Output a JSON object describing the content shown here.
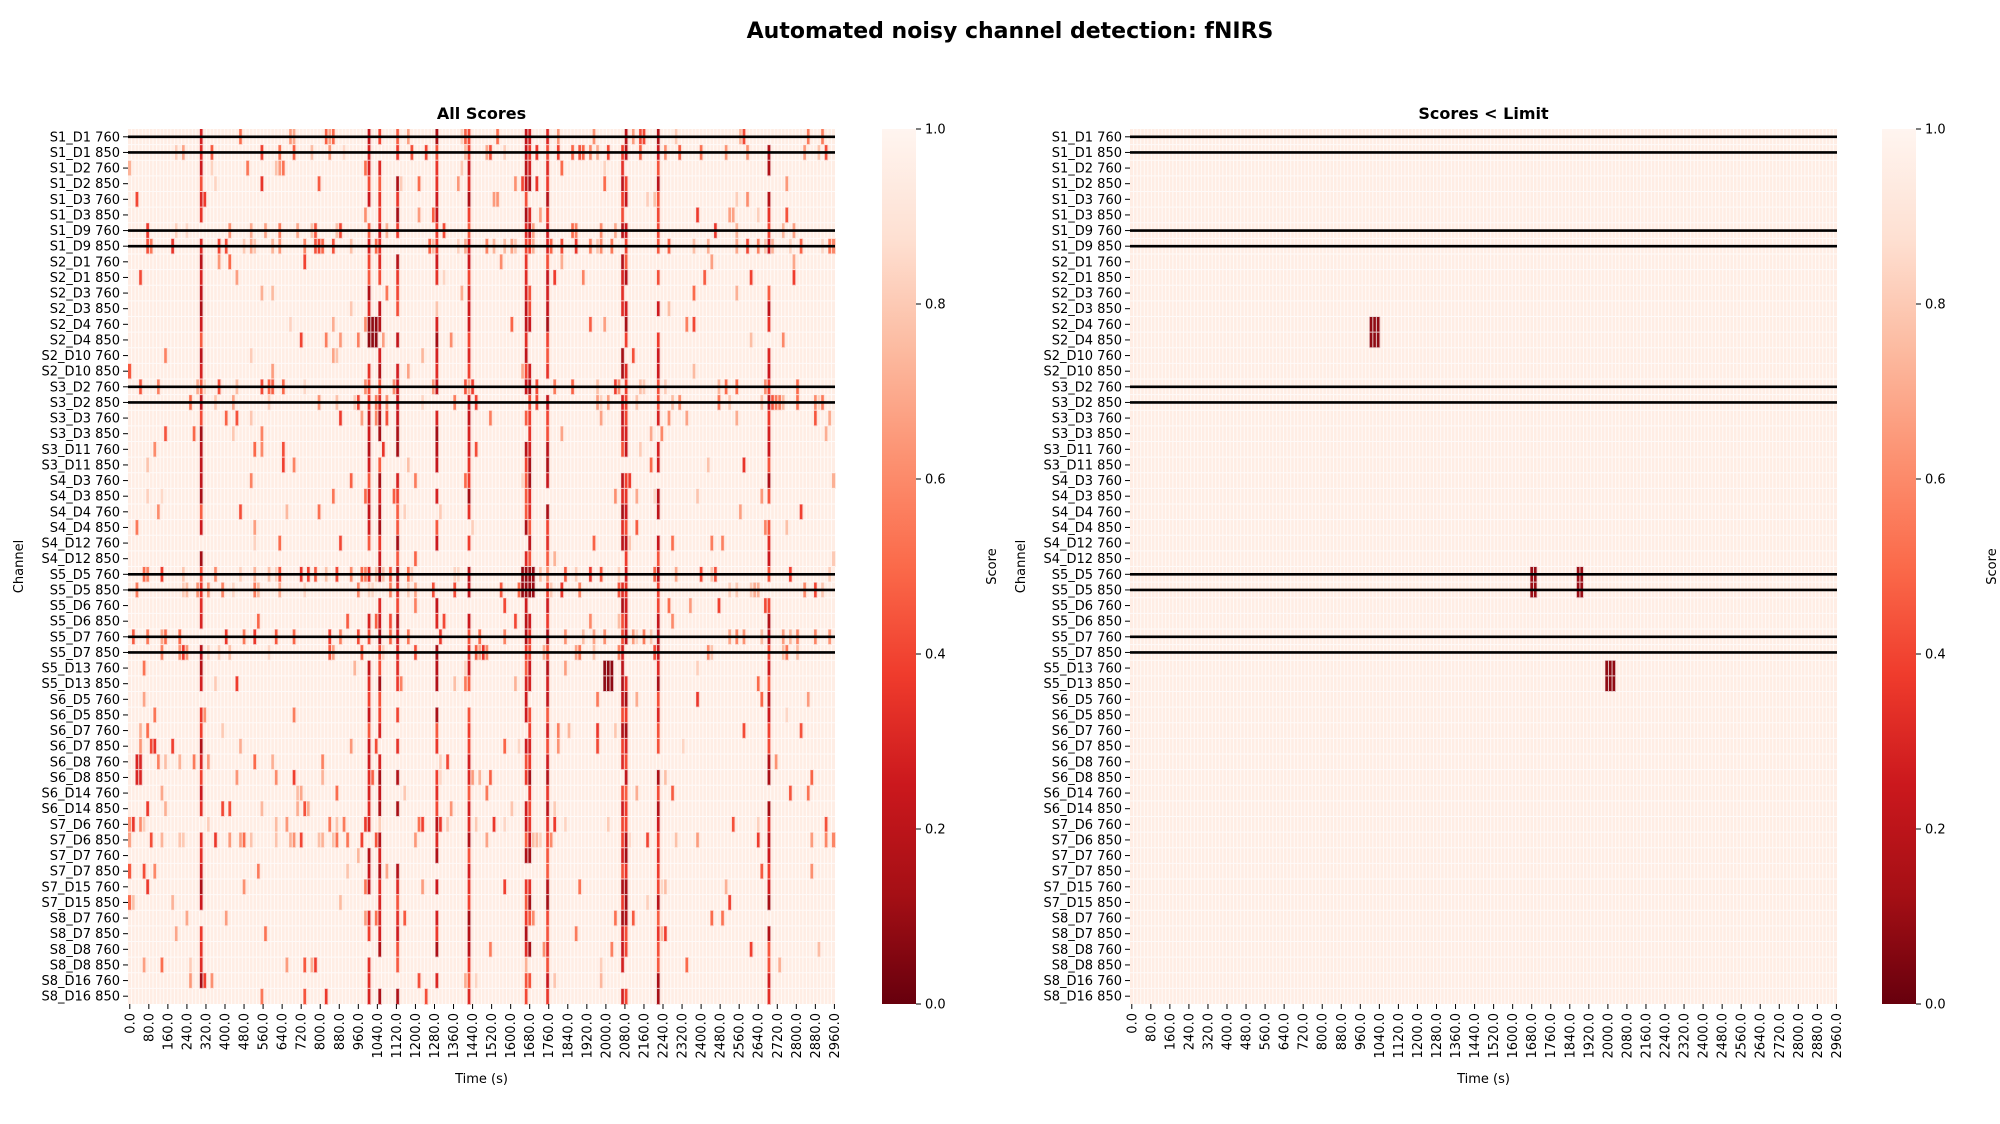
{
  "figure": {
    "title": "Automated noisy channel detection: fNIRS"
  },
  "chart_data": [
    {
      "type": "heatmap",
      "title": "All Scores",
      "xlabel": "Time (s)",
      "ylabel": "Channel",
      "colorbar_label": "Score",
      "colormap": "Reds_r",
      "vlim": [
        0.0,
        1.0
      ],
      "colorbar_ticks": [
        "0.0",
        "0.2",
        "0.4",
        "0.6",
        "0.8",
        "1.0"
      ],
      "x_ticks": [
        "0.0",
        "80.0",
        "160.0",
        "240.0",
        "320.0",
        "400.0",
        "480.0",
        "560.0",
        "640.0",
        "720.0",
        "800.0",
        "880.0",
        "960.0",
        "1040.0",
        "1120.0",
        "1200.0",
        "1280.0",
        "1360.0",
        "1440.0",
        "1520.0",
        "1600.0",
        "1680.0",
        "1760.0",
        "1840.0",
        "1920.0",
        "2000.0",
        "2080.0",
        "2160.0",
        "2240.0",
        "2320.0",
        "2400.0",
        "2480.0",
        "2560.0",
        "2640.0",
        "2720.0",
        "2800.0",
        "2880.0",
        "2960.0"
      ],
      "x_range": [
        0,
        2970
      ],
      "channels": [
        "S1_D1 760",
        "S1_D1 850",
        "S1_D2 760",
        "S1_D2 850",
        "S1_D3 760",
        "S1_D3 850",
        "S1_D9 760",
        "S1_D9 850",
        "S2_D1 760",
        "S2_D1 850",
        "S2_D3 760",
        "S2_D3 850",
        "S2_D4 760",
        "S2_D4 850",
        "S2_D10 760",
        "S2_D10 850",
        "S3_D2 760",
        "S3_D2 850",
        "S3_D3 760",
        "S3_D3 850",
        "S3_D11 760",
        "S3_D11 850",
        "S4_D3 760",
        "S4_D3 850",
        "S4_D4 760",
        "S4_D4 850",
        "S4_D12 760",
        "S4_D12 850",
        "S5_D5 760",
        "S5_D5 850",
        "S5_D6 760",
        "S5_D6 850",
        "S5_D7 760",
        "S5_D7 850",
        "S5_D13 760",
        "S5_D13 850",
        "S6_D5 760",
        "S6_D5 850",
        "S6_D7 760",
        "S6_D7 850",
        "S6_D8 760",
        "S6_D8 850",
        "S6_D14 760",
        "S6_D14 850",
        "S7_D6 760",
        "S7_D6 850",
        "S7_D7 760",
        "S7_D7 850",
        "S7_D15 760",
        "S7_D15 850",
        "S8_D7 760",
        "S8_D7 850",
        "S8_D8 760",
        "S8_D8 850",
        "S8_D16 760",
        "S8_D16 850"
      ],
      "bad_channels": [
        "S1_D1 760",
        "S1_D1 850",
        "S1_D9 760",
        "S1_D9 850",
        "S3_D2 760",
        "S3_D2 850",
        "S5_D5 760",
        "S5_D5 850",
        "S5_D7 760",
        "S5_D7 850"
      ],
      "background_score": 0.95,
      "noisy_channels": [
        "S1_D1 760",
        "S1_D1 850",
        "S1_D9 760",
        "S1_D9 850",
        "S3_D2 760",
        "S3_D2 850",
        "S5_D5 760",
        "S5_D5 850",
        "S5_D7 760",
        "S5_D7 850",
        "S7_D6 760",
        "S7_D6 850"
      ],
      "global_artifact_times": [
        300,
        1010,
        1050,
        1130,
        1300,
        1430,
        1670,
        1690,
        1760,
        2070,
        2090,
        2230,
        2690
      ],
      "artifact_cells": [
        {
          "channels": [
            "S2_D4 760",
            "S2_D4 850"
          ],
          "t_start": 1010,
          "t_end": 1040,
          "score": 0.08
        },
        {
          "channels": [
            "S5_D13 760",
            "S5_D13 850"
          ],
          "t_start": 2000,
          "t_end": 2030,
          "score": 0.08
        },
        {
          "channels": [
            "S6_D8 760",
            "S6_D8 850"
          ],
          "t_start": 30,
          "t_end": 45,
          "score": 0.3
        },
        {
          "channels": [
            "S5_D5 760",
            "S5_D5 850"
          ],
          "t_start": 1665,
          "t_end": 1700,
          "score": 0.1
        }
      ]
    },
    {
      "type": "heatmap",
      "title": "Scores < Limit",
      "xlabel": "Time (s)",
      "ylabel": "Channel",
      "colorbar_label": "Score",
      "colormap": "Reds_r",
      "vlim": [
        0.0,
        1.0
      ],
      "colorbar_ticks": [
        "0.0",
        "0.2",
        "0.4",
        "0.6",
        "0.8",
        "1.0"
      ],
      "x_ticks": [
        "0.0",
        "80.0",
        "160.0",
        "240.0",
        "320.0",
        "400.0",
        "480.0",
        "560.0",
        "640.0",
        "720.0",
        "800.0",
        "880.0",
        "960.0",
        "1040.0",
        "1120.0",
        "1200.0",
        "1280.0",
        "1360.0",
        "1440.0",
        "1520.0",
        "1600.0",
        "1680.0",
        "1760.0",
        "1840.0",
        "1920.0",
        "2000.0",
        "2080.0",
        "2160.0",
        "2240.0",
        "2320.0",
        "2400.0",
        "2480.0",
        "2560.0",
        "2640.0",
        "2720.0",
        "2800.0",
        "2880.0",
        "2960.0"
      ],
      "x_range": [
        0,
        2970
      ],
      "bad_channels": [
        "S1_D1 760",
        "S1_D1 850",
        "S1_D9 760",
        "S1_D9 850",
        "S3_D2 760",
        "S3_D2 850",
        "S5_D5 760",
        "S5_D5 850",
        "S5_D7 760",
        "S5_D7 850"
      ],
      "background_score": 0.95,
      "low_score_cells": [
        {
          "channels": [
            "S2_D4 760",
            "S2_D4 850"
          ],
          "t_start": 1010,
          "t_end": 1035,
          "score": 0.08
        },
        {
          "channels": [
            "S5_D5 760",
            "S5_D5 850"
          ],
          "t_start": 1690,
          "t_end": 1700,
          "score": 0.1
        },
        {
          "channels": [
            "S5_D5 760",
            "S5_D5 850"
          ],
          "t_start": 1880,
          "t_end": 1890,
          "score": 0.1
        },
        {
          "channels": [
            "S5_D13 760",
            "S5_D13 850"
          ],
          "t_start": 2005,
          "t_end": 2030,
          "score": 0.08
        }
      ]
    }
  ]
}
